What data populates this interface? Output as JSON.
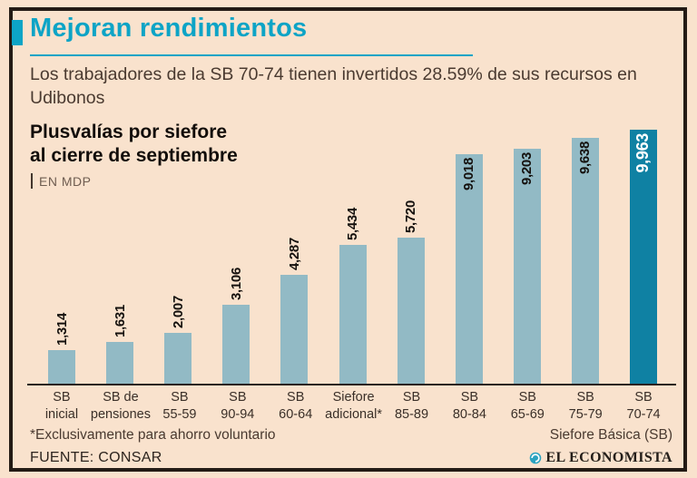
{
  "header": {
    "title": "Mejoran rendimientos",
    "subtitle": "Los trabajadores de la SB 70-74 tienen invertidos 28.59% de sus recursos en Udibonos"
  },
  "section": {
    "title_line1": "Plusvalías por siefore",
    "title_line2": "al cierre de septiembre",
    "unit_label": "EN MDP"
  },
  "chart_data": {
    "type": "bar",
    "title": "Plusvalías por siefore al cierre de septiembre",
    "ylabel": "MDP",
    "xlabel": "Siefore Básica (SB)",
    "categories": [
      [
        "SB",
        "inicial"
      ],
      [
        "SB de",
        "pensiones"
      ],
      [
        "SB",
        "55-59"
      ],
      [
        "SB",
        "90-94"
      ],
      [
        "SB",
        "60-64"
      ],
      [
        "Siefore",
        "adicional*"
      ],
      [
        "SB",
        "85-89"
      ],
      [
        "SB",
        "80-84"
      ],
      [
        "SB",
        "65-69"
      ],
      [
        "SB",
        "75-79"
      ],
      [
        "SB",
        "70-74"
      ]
    ],
    "values": [
      1314,
      1631,
      2007,
      3106,
      4287,
      5434,
      5720,
      9018,
      9203,
      9638,
      9963
    ],
    "value_labels": [
      "1,314",
      "1,631",
      "2,007",
      "3,106",
      "4,287",
      "5,434",
      "5,720",
      "9,018",
      "9,203",
      "9,638",
      "9,963"
    ],
    "highlight_index": 10,
    "ylim": [
      0,
      9963
    ],
    "grid": false,
    "legend": "none",
    "bar_color": "#92bac5",
    "highlight_color": "#0f81a3"
  },
  "footer": {
    "footnote": "*Exclusivamente para ahorro voluntario",
    "axis_note": "Siefore Básica (SB)",
    "source": "FUENTE: CONSAR",
    "brand": "EL ECONOMISTA"
  },
  "colors": {
    "accent": "#0da4c6",
    "background": "#f9e2cd",
    "border": "#231b15"
  }
}
